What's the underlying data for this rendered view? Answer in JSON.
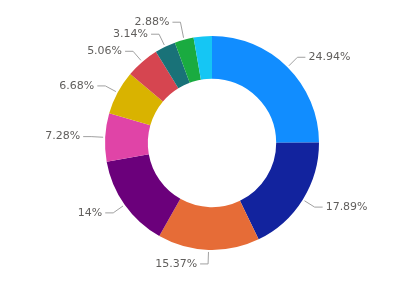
{
  "chart_data": {
    "type": "doughnut",
    "values": [
      24.94,
      17.89,
      15.37,
      14,
      7.28,
      6.68,
      5.06,
      3.14,
      2.88,
      2.76
    ],
    "value_labels": [
      "24.94%",
      "17.89%",
      "15.37%",
      "14%",
      "7.28%",
      "6.68%",
      "5.06%",
      "3.14%",
      "2.88%",
      null
    ],
    "colors": [
      "#118DFF",
      "#12239E",
      "#E66C37",
      "#6B007B",
      "#E044A7",
      "#D9B300",
      "#D64550",
      "#197278",
      "#1AAB40",
      "#15C6F4"
    ],
    "data_labels": true
  }
}
